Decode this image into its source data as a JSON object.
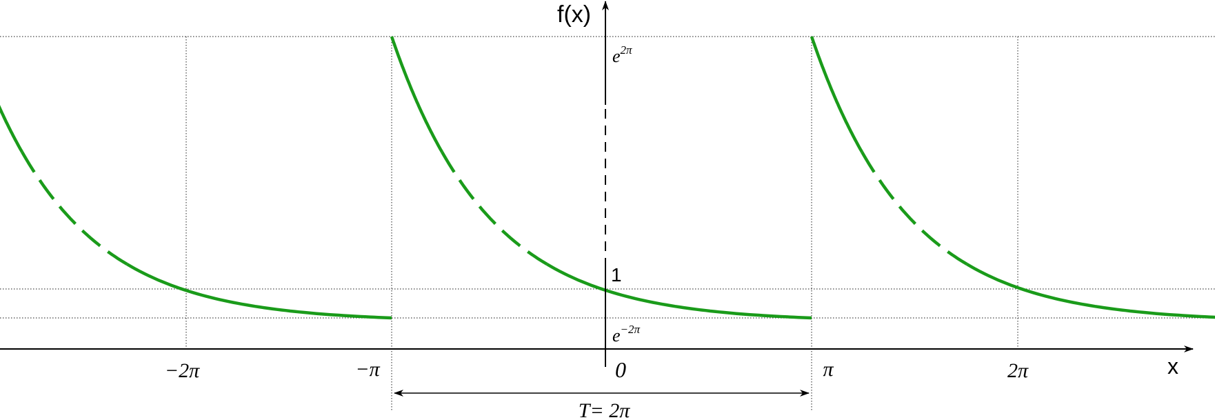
{
  "axes": {
    "y_label": "f(x)",
    "x_label": "x"
  },
  "y_labels": {
    "top": {
      "base": "e",
      "exponent": "2π"
    },
    "one": "1",
    "bottom": {
      "base": "e",
      "exponent": "−2π"
    }
  },
  "x_labels": {
    "minus_two_pi": "−2π",
    "minus_pi": "−π",
    "zero": "0",
    "pi": "π",
    "two_pi": "2π"
  },
  "period_label": "T= 2π"
}
